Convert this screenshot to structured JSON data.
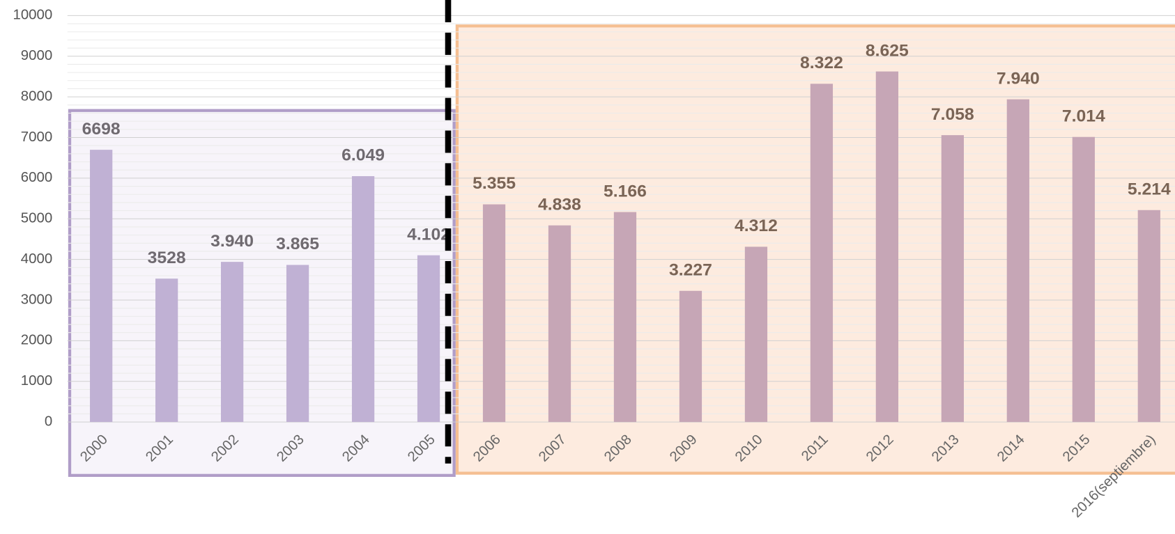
{
  "chart_data": {
    "type": "bar",
    "categories": [
      "2000",
      "2001",
      "2002",
      "2003",
      "2004",
      "2005",
      "2006",
      "2007",
      "2008",
      "2009",
      "2010",
      "2011",
      "2012",
      "2013",
      "2014",
      "2015",
      "2016(septiembre)"
    ],
    "values": [
      6698,
      3528,
      3940,
      3865,
      6049,
      4102,
      5355,
      4838,
      5166,
      3227,
      4312,
      8322,
      8625,
      7058,
      7940,
      7014,
      5214
    ],
    "value_labels": [
      "6698",
      "3528",
      "3.940",
      "3.865",
      "6.049",
      "4.102",
      "5.355",
      "4.838",
      "5.166",
      "3.227",
      "4.312",
      "8.322",
      "8.625",
      "7.058",
      "7.940",
      "7.014",
      "5.214"
    ],
    "colors": [
      "#c0b1d4",
      "#c0b1d4",
      "#c0b1d4",
      "#c0b1d4",
      "#c0b1d4",
      "#c0b1d4",
      "#c6a6b6",
      "#c6a6b6",
      "#c6a6b6",
      "#c6a6b6",
      "#c6a6b6",
      "#c6a6b6",
      "#c6a6b6",
      "#c6a6b6",
      "#c6a6b6",
      "#c6a6b6",
      "#c6a6b6"
    ],
    "ylim": [
      0,
      10000
    ],
    "yticks": [
      0,
      1000,
      2000,
      3000,
      4000,
      5000,
      6000,
      7000,
      8000,
      9000,
      10000
    ],
    "grid": true
  }
}
